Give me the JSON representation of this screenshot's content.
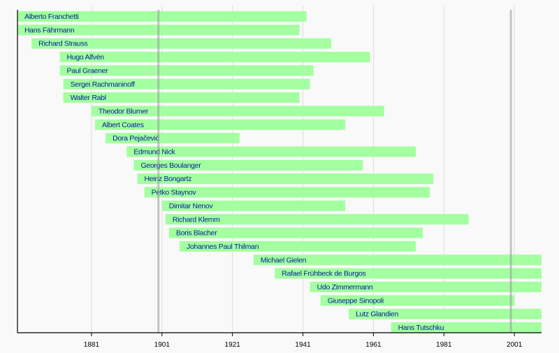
{
  "chart_data": {
    "type": "bar",
    "orientation": "horizontal-timeline",
    "title": "",
    "xlabel": "",
    "ylabel": "",
    "xlim": [
      1860,
      2008.7
    ],
    "xticks": [
      1881,
      1901,
      1921,
      1941,
      1961,
      1981,
      2001
    ],
    "xtick_labels": [
      "1881",
      "1901",
      "1921",
      "1941",
      "1961",
      "1981",
      "2001"
    ],
    "grid": true,
    "highlight_lines": [
      1900,
      2000
    ],
    "colors": {
      "bar": "#a3ff9f",
      "label": "#00229a",
      "grid": "#dddddd",
      "highlight": "#999999",
      "axis": "#000000",
      "background": "#f9f9f9"
    },
    "items": [
      {
        "name": "Alberto Franchetti",
        "start": 1860,
        "end": 1942
      },
      {
        "name": "Hans Fährmann",
        "start": 1860,
        "end": 1940
      },
      {
        "name": "Richard Strauss",
        "start": 1864,
        "end": 1949
      },
      {
        "name": "Hugo Alfvén",
        "start": 1872,
        "end": 1960
      },
      {
        "name": "Paul Graener",
        "start": 1872,
        "end": 1944
      },
      {
        "name": "Sergei Rachmaninoff",
        "start": 1873,
        "end": 1943
      },
      {
        "name": "Walter Rabl",
        "start": 1873,
        "end": 1940
      },
      {
        "name": "Theodor Blumer",
        "start": 1881,
        "end": 1964
      },
      {
        "name": "Albert Coates",
        "start": 1882,
        "end": 1953
      },
      {
        "name": "Dora Pejačević",
        "start": 1885,
        "end": 1923
      },
      {
        "name": "Edmund Nick",
        "start": 1891,
        "end": 1973
      },
      {
        "name": "Georges Boulanger",
        "start": 1893,
        "end": 1958
      },
      {
        "name": "Heinz Bongartz",
        "start": 1894,
        "end": 1978
      },
      {
        "name": "Petko Staynov",
        "start": 1896,
        "end": 1977
      },
      {
        "name": "Dimitar Nenov",
        "start": 1901,
        "end": 1953
      },
      {
        "name": "Richard Klemm",
        "start": 1902,
        "end": 1988
      },
      {
        "name": "Boris Blacher",
        "start": 1903,
        "end": 1975
      },
      {
        "name": "Johannes Paul Thilman",
        "start": 1906,
        "end": 1973
      },
      {
        "name": "Michael Gielen",
        "start": 1927,
        "end": null
      },
      {
        "name": "Rafael Frühbeck de Burgos",
        "start": 1933,
        "end": null
      },
      {
        "name": "Udo Zimmermann",
        "start": 1943,
        "end": null
      },
      {
        "name": "Giuseppe Sinopoli",
        "start": 1946,
        "end": 2001
      },
      {
        "name": "Lutz Glandien",
        "start": 1954,
        "end": null
      },
      {
        "name": "Hans Tutschku",
        "start": 1966,
        "end": null
      }
    ]
  }
}
